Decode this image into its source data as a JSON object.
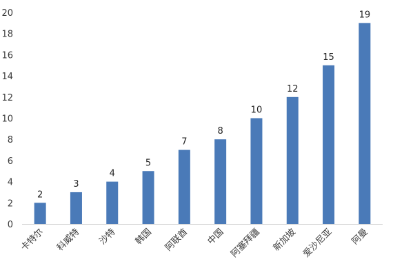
{
  "chart_data": {
    "type": "bar",
    "title": "",
    "xlabel": "",
    "ylabel": "",
    "categories": [
      "卡特尔",
      "科威特",
      "沙特",
      "韩国",
      "阿联酋",
      "中国",
      "阿塞拜疆",
      "新加坡",
      "爱沙尼亚",
      "阿曼"
    ],
    "values": [
      2,
      3,
      4,
      5,
      7,
      8,
      10,
      12,
      15,
      19
    ],
    "ylim": [
      0,
      20
    ],
    "yticks": [
      0,
      2,
      4,
      6,
      8,
      10,
      12,
      14,
      16,
      18,
      20
    ],
    "grid": false,
    "legend": "none",
    "bar_color": "#4a7ab8",
    "axis_color": "#d0d0d0"
  }
}
